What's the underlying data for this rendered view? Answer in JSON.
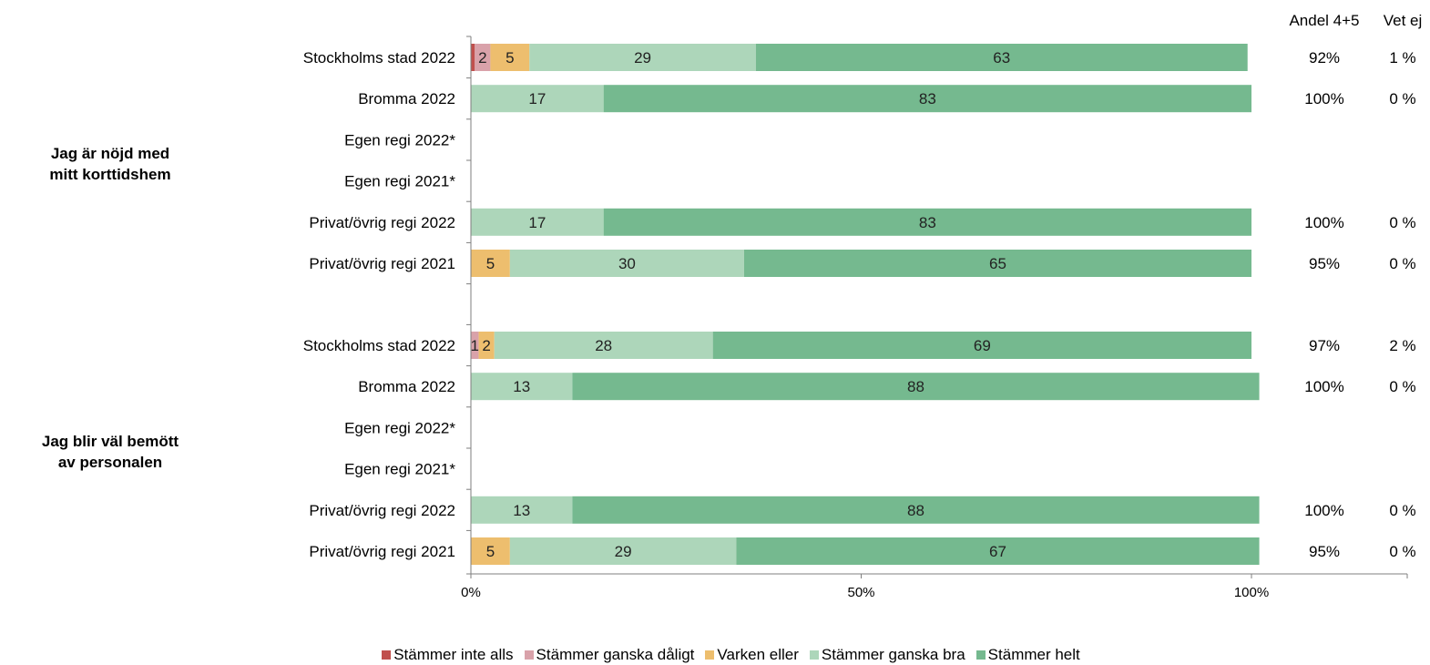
{
  "chart_data": {
    "type": "bar",
    "orientation": "horizontal",
    "stacked": true,
    "xlim": [
      0,
      100
    ],
    "xticks": [
      "0%",
      "50%",
      "100%"
    ],
    "extra_columns": {
      "share_header": "Andel 4+5",
      "dontknow_header": "Vet ej"
    },
    "legend_placement": "bottom",
    "series": [
      {
        "name": "Stämmer inte alls",
        "color": "#C0504D"
      },
      {
        "name": "Stämmer ganska dåligt",
        "color": "#D9A2AA"
      },
      {
        "name": "Varken eller",
        "color": "#EDBE6E"
      },
      {
        "name": "Stämmer ganska bra",
        "color": "#ADD6BA"
      },
      {
        "name": "Stämmer helt",
        "color": "#75B98F"
      }
    ],
    "groups": [
      {
        "label": "Jag är nöjd med mitt korttidshem",
        "rows": [
          {
            "label": "Stockholms stad 2022",
            "values": [
              0.5,
              2,
              5,
              29,
              63
            ],
            "bar_labels": [
              "",
              "2",
              "5",
              "29",
              "63"
            ],
            "share": "92%",
            "dontknow": "1 %"
          },
          {
            "label": "Bromma 2022",
            "values": [
              0,
              0,
              0,
              17,
              83
            ],
            "bar_labels": [
              "",
              "",
              "",
              "17",
              "83"
            ],
            "share": "100%",
            "dontknow": "0 %"
          },
          {
            "label": "Egen regi 2022*",
            "values": [
              0,
              0,
              0,
              0,
              0
            ],
            "bar_labels": [
              "",
              "",
              "",
              "",
              ""
            ],
            "share": "",
            "dontknow": ""
          },
          {
            "label": "Egen regi 2021*",
            "values": [
              0,
              0,
              0,
              0,
              0
            ],
            "bar_labels": [
              "",
              "",
              "",
              "",
              ""
            ],
            "share": "",
            "dontknow": ""
          },
          {
            "label": "Privat/övrig regi 2022",
            "values": [
              0,
              0,
              0,
              17,
              83
            ],
            "bar_labels": [
              "",
              "",
              "",
              "17",
              "83"
            ],
            "share": "100%",
            "dontknow": "0 %"
          },
          {
            "label": "Privat/övrig regi 2021",
            "values": [
              0,
              0,
              5,
              30,
              65
            ],
            "bar_labels": [
              "",
              "",
              "5",
              "30",
              "65"
            ],
            "share": "95%",
            "dontknow": "0 %"
          }
        ]
      },
      {
        "label": "Jag blir väl bemött av personalen",
        "rows": [
          {
            "label": "Stockholms stad 2022",
            "values": [
              0,
              1,
              2,
              28,
              69
            ],
            "bar_labels": [
              "",
              "1",
              "2",
              "28",
              "69"
            ],
            "share": "97%",
            "dontknow": "2 %"
          },
          {
            "label": "Bromma 2022",
            "values": [
              0,
              0,
              0,
              13,
              88
            ],
            "bar_labels": [
              "",
              "",
              "",
              "13",
              "88"
            ],
            "share": "100%",
            "dontknow": "0 %"
          },
          {
            "label": "Egen regi 2022*",
            "values": [
              0,
              0,
              0,
              0,
              0
            ],
            "bar_labels": [
              "",
              "",
              "",
              "",
              ""
            ],
            "share": "",
            "dontknow": ""
          },
          {
            "label": "Egen regi 2021*",
            "values": [
              0,
              0,
              0,
              0,
              0
            ],
            "bar_labels": [
              "",
              "",
              "",
              "",
              ""
            ],
            "share": "",
            "dontknow": ""
          },
          {
            "label": "Privat/övrig regi 2022",
            "values": [
              0,
              0,
              0,
              13,
              88
            ],
            "bar_labels": [
              "",
              "",
              "",
              "13",
              "88"
            ],
            "share": "100%",
            "dontknow": "0 %"
          },
          {
            "label": "Privat/övrig regi 2021",
            "values": [
              0,
              0,
              5,
              29,
              67
            ],
            "bar_labels": [
              "",
              "",
              "5",
              "29",
              "67"
            ],
            "share": "95%",
            "dontknow": "0 %"
          }
        ]
      }
    ]
  }
}
